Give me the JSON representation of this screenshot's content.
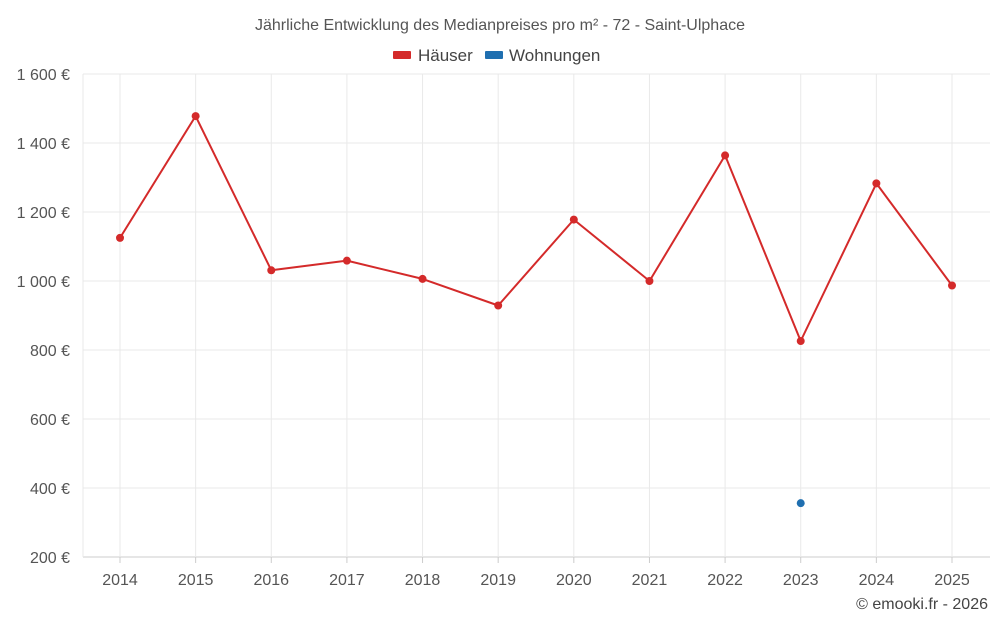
{
  "chart_data": {
    "type": "line",
    "title": "Jährliche Entwicklung des Medianpreises pro m² - 72 - Saint-Ulphace",
    "categories": [
      "2014",
      "2015",
      "2016",
      "2017",
      "2018",
      "2019",
      "2020",
      "2021",
      "2022",
      "2023",
      "2024",
      "2025"
    ],
    "series": [
      {
        "name": "Häuser",
        "color": "#d42a2a",
        "values": [
          1125,
          1478,
          1031,
          1059,
          1006,
          929,
          1178,
          1000,
          1364,
          826,
          1283,
          987
        ]
      },
      {
        "name": "Wohnungen",
        "color": "#1f6fb0",
        "values": [
          null,
          null,
          null,
          null,
          null,
          null,
          null,
          null,
          null,
          356,
          null,
          null
        ]
      }
    ],
    "ylim": [
      200,
      1600
    ],
    "yticks": [
      200,
      400,
      600,
      800,
      1000,
      1200,
      1400,
      1600
    ],
    "ytick_labels": [
      "200 €",
      "400 €",
      "600 €",
      "800 €",
      "1 000 €",
      "1 200 €",
      "1 400 €",
      "1 600 €"
    ],
    "xlabel": "",
    "ylabel": "",
    "grid": true,
    "legend_position": "top-center"
  },
  "credits": "© emooki.fr - 2026"
}
